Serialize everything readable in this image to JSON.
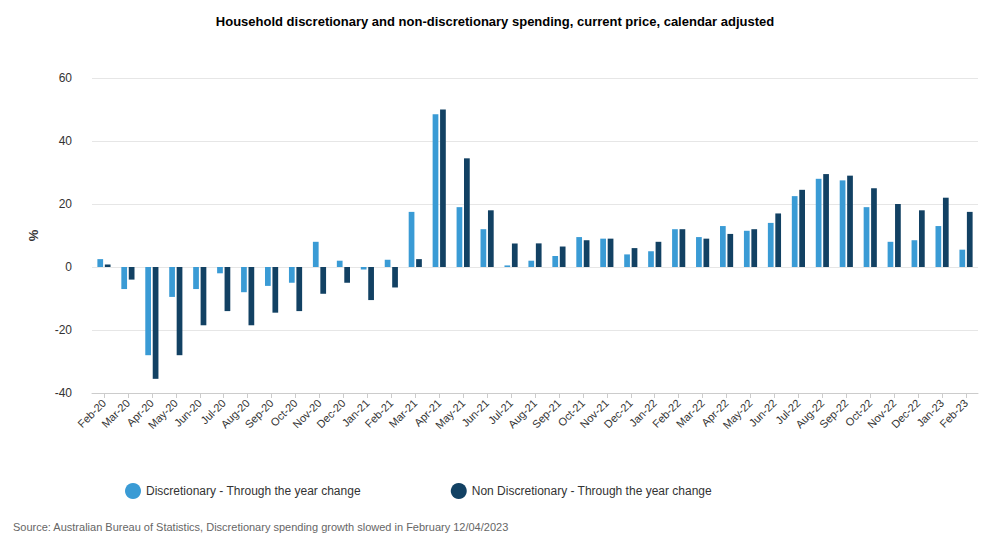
{
  "chart_data": {
    "type": "bar",
    "title": "Household discretionary and non-discretionary spending, current price, calendar adjusted",
    "y_label": "%",
    "source": "Source: Australian Bureau of Statistics, Discretionary spending growth slowed in February 12/04/2023",
    "categories": [
      "Feb-20",
      "Mar-20",
      "Apr-20",
      "May-20",
      "Jun-20",
      "Jul-20",
      "Aug-20",
      "Sep-20",
      "Oct-20",
      "Nov-20",
      "Dec-20",
      "Jan-21",
      "Feb-21",
      "Mar-21",
      "Apr-21",
      "May-21",
      "Jun-21",
      "Jul-21",
      "Aug-21",
      "Sep-21",
      "Oct-21",
      "Nov-21",
      "Dec-21",
      "Jan-22",
      "Feb-22",
      "Mar-22",
      "Apr-22",
      "May-22",
      "Jun-22",
      "Jul-22",
      "Aug-22",
      "Sep-22",
      "Oct-22",
      "Nov-22",
      "Dec-22",
      "Jan-23",
      "Feb-23"
    ],
    "series": [
      {
        "name": "Discretionary - Through the year change",
        "color": "#3a9bd5",
        "values": [
          2.5,
          -7,
          -28,
          -9.5,
          -7,
          -2,
          -8,
          -6,
          -5,
          8,
          2,
          -0.8,
          2.3,
          17.5,
          48.5,
          19,
          12,
          0.5,
          2,
          3.5,
          9.5,
          9,
          4,
          5,
          12,
          9.5,
          13,
          11.5,
          14,
          22.5,
          28,
          27.5,
          19,
          8,
          8.5,
          13,
          5.5
        ]
      },
      {
        "name": "Non Discretionary - Through the year change",
        "color": "#124163",
        "values": [
          0.8,
          -4,
          -35.5,
          -28,
          -18.5,
          -14,
          -18.5,
          -14.5,
          -14,
          -8.5,
          -5,
          -10.5,
          -6.5,
          2.5,
          50,
          34.5,
          18,
          7.5,
          7.5,
          6.5,
          8.5,
          9,
          6,
          8,
          12,
          9,
          10.5,
          12,
          17,
          24.5,
          29.5,
          29,
          25,
          20,
          18,
          22,
          17.5
        ]
      }
    ],
    "ylim": [
      -40,
      60
    ],
    "yticks": [
      -40,
      -20,
      0,
      20,
      40,
      60
    ],
    "grid": true,
    "legend": "bottom"
  }
}
